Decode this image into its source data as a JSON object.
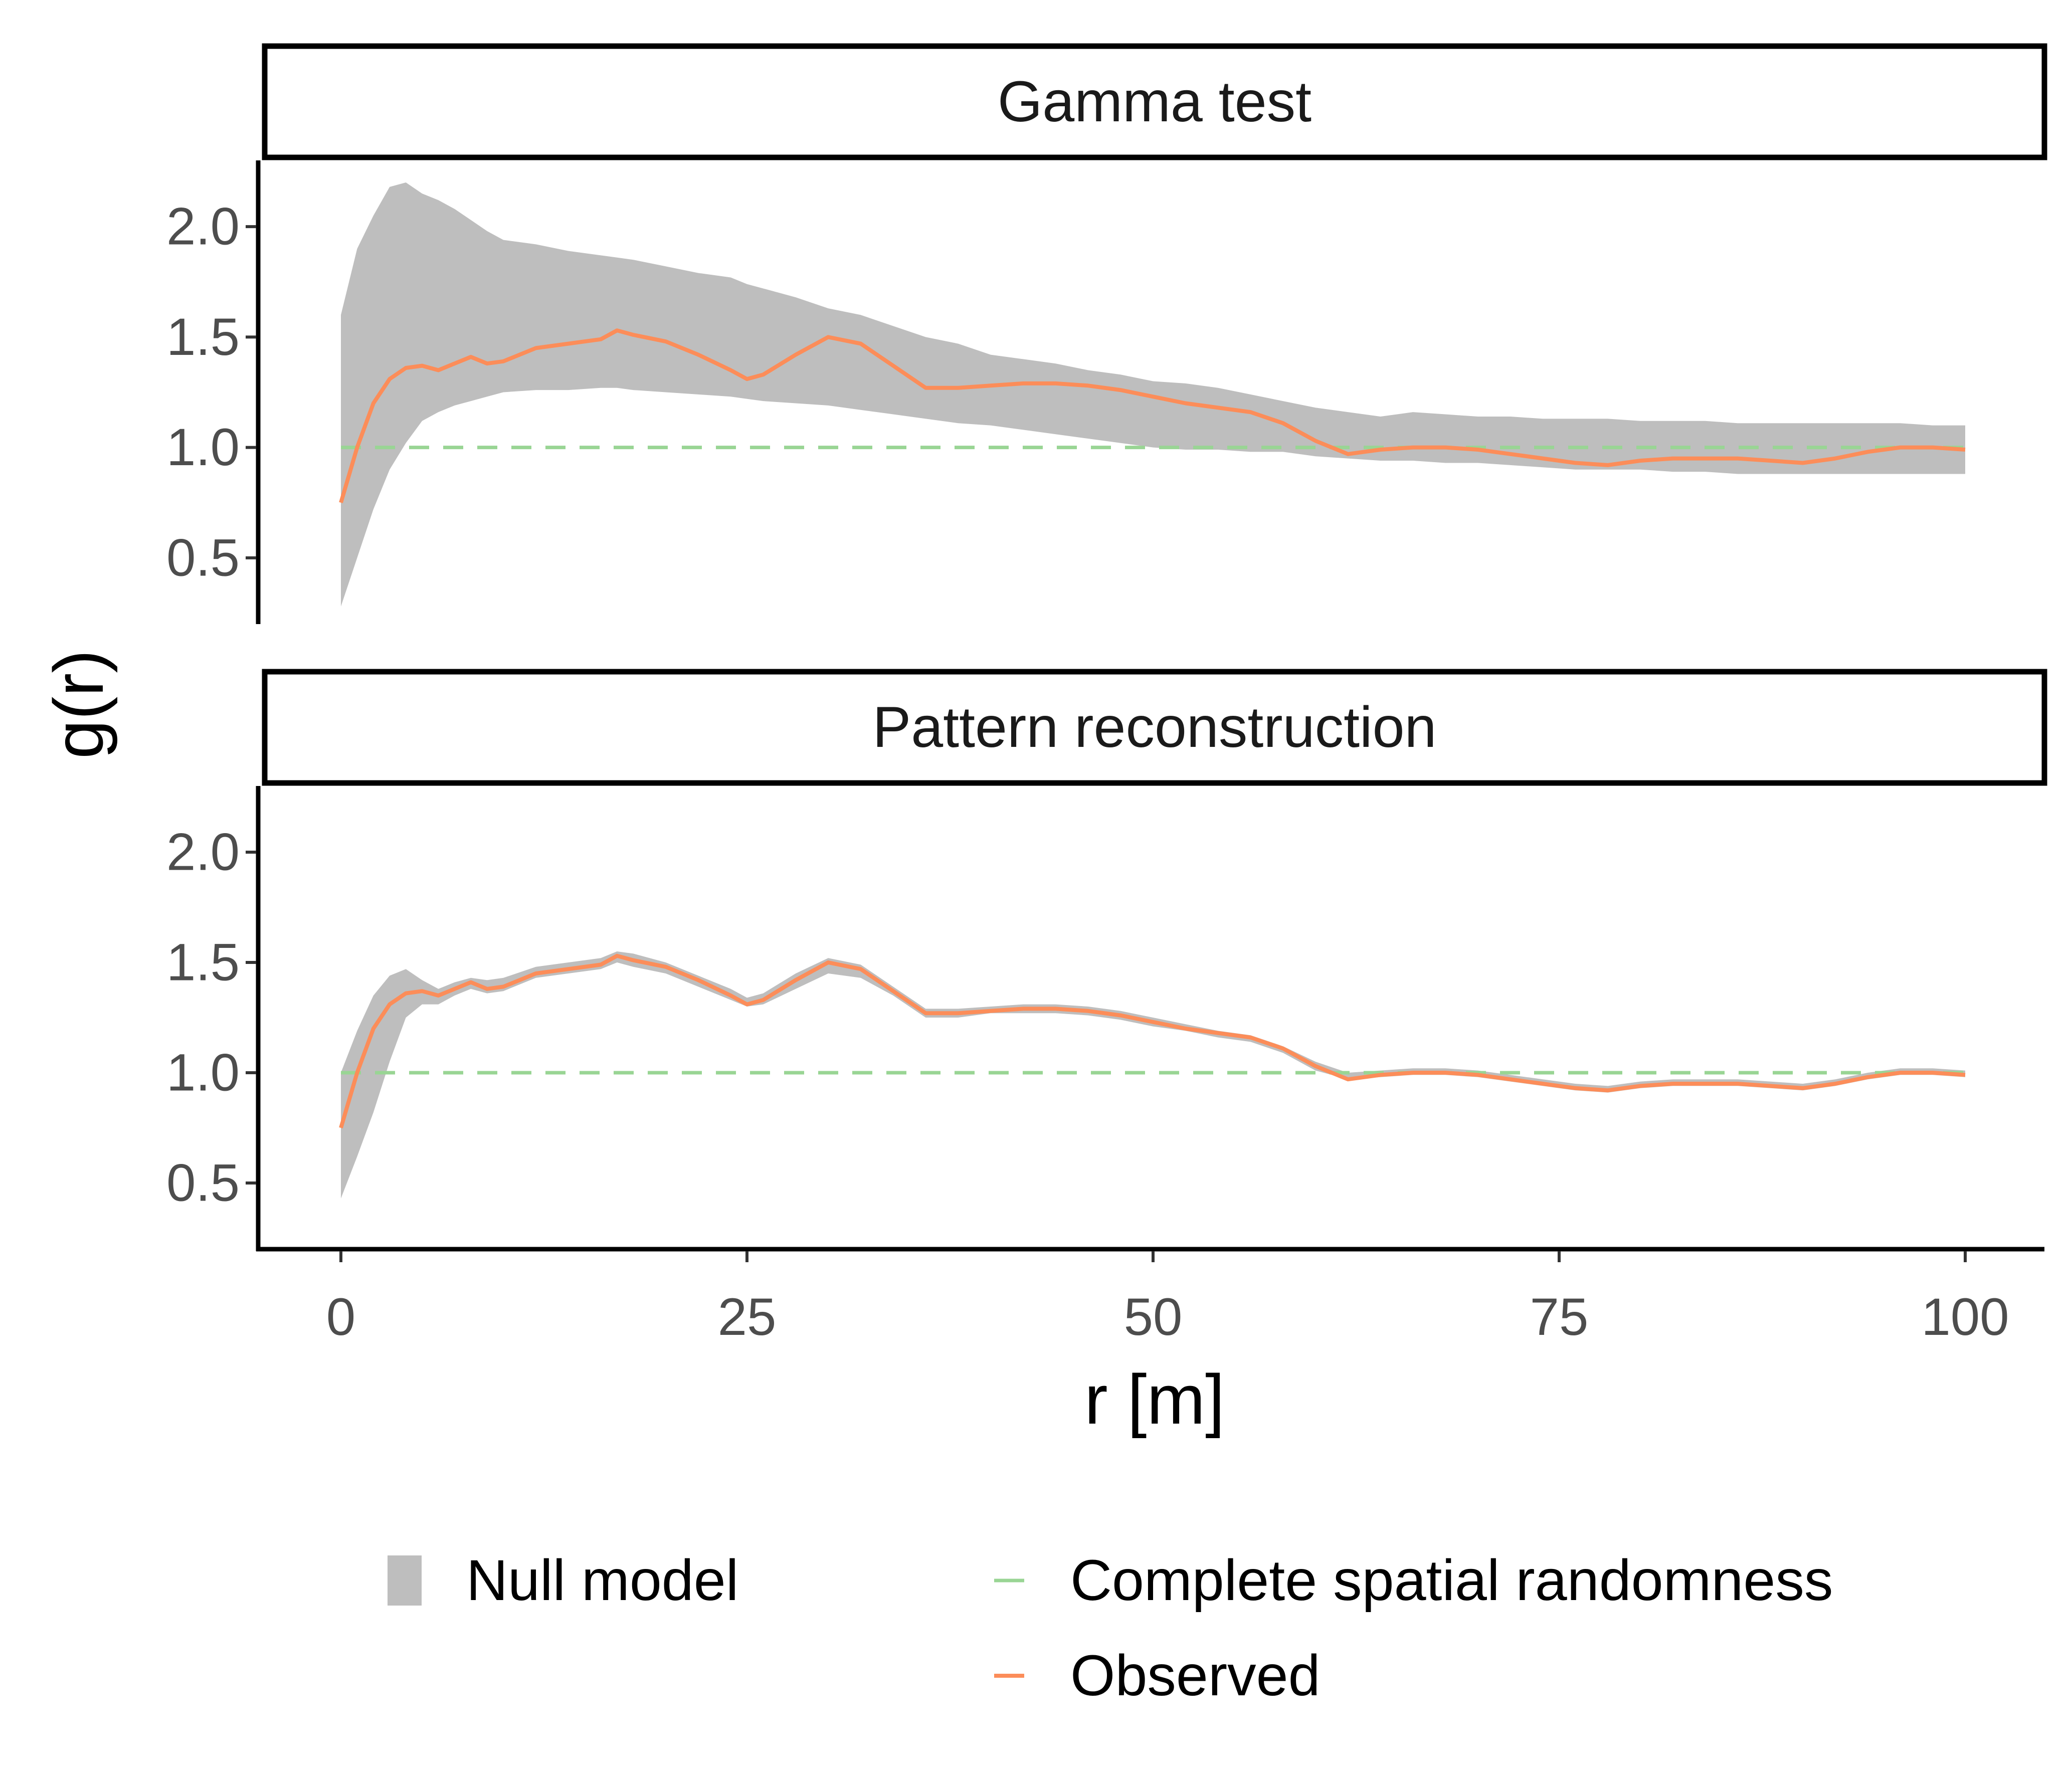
{
  "chart_data": {
    "type": "line",
    "facets": [
      "Gamma test",
      "Pattern reconstruction"
    ],
    "xlabel": "r [m]",
    "ylabel": "g(r)",
    "xlim": [
      0,
      100
    ],
    "ylim": [
      0.2,
      2.3
    ],
    "x_ticks": [
      0,
      25,
      50,
      75,
      100
    ],
    "y_ticks": [
      0.5,
      1.0,
      1.5,
      2.0
    ],
    "x_tick_labels": [
      "0",
      "25",
      "50",
      "75",
      "100"
    ],
    "y_tick_labels": [
      "0.5",
      "1.0",
      "1.5",
      "2.0"
    ],
    "grid": false,
    "legend_position": "bottom",
    "legend": {
      "null_model": "Null model",
      "csr": "Complete spatial randomness",
      "observed": "Observed"
    },
    "colors": {
      "null_model": "#bebebe",
      "csr": "#99d594",
      "observed": "#fc8d59"
    },
    "csr_value": 1.0,
    "x": [
      0,
      1,
      2,
      3,
      4,
      5,
      6,
      7,
      8,
      9,
      10,
      12,
      14,
      16,
      17,
      18,
      20,
      22,
      24,
      25,
      26,
      28,
      30,
      32,
      34,
      36,
      38,
      40,
      42,
      44,
      46,
      48,
      50,
      52,
      54,
      56,
      58,
      60,
      62,
      64,
      66,
      68,
      70,
      72,
      74,
      76,
      78,
      80,
      82,
      84,
      86,
      88,
      90,
      92,
      94,
      96,
      98,
      100
    ],
    "observed": [
      0.75,
      1.0,
      1.2,
      1.31,
      1.36,
      1.37,
      1.35,
      1.38,
      1.41,
      1.38,
      1.39,
      1.45,
      1.47,
      1.49,
      1.53,
      1.51,
      1.48,
      1.42,
      1.35,
      1.31,
      1.33,
      1.42,
      1.5,
      1.47,
      1.37,
      1.27,
      1.27,
      1.28,
      1.29,
      1.29,
      1.28,
      1.26,
      1.23,
      1.2,
      1.18,
      1.16,
      1.11,
      1.03,
      0.97,
      0.99,
      1.0,
      1.0,
      0.99,
      0.97,
      0.95,
      0.93,
      0.92,
      0.94,
      0.95,
      0.95,
      0.95,
      0.94,
      0.93,
      0.95,
      0.98,
      1.0,
      1.0,
      0.99
    ],
    "series": [
      {
        "facet": "Gamma test",
        "lower": [
          0.28,
          0.5,
          0.72,
          0.9,
          1.02,
          1.12,
          1.16,
          1.19,
          1.21,
          1.23,
          1.25,
          1.26,
          1.26,
          1.27,
          1.27,
          1.26,
          1.25,
          1.24,
          1.23,
          1.22,
          1.21,
          1.2,
          1.19,
          1.17,
          1.15,
          1.13,
          1.11,
          1.1,
          1.08,
          1.06,
          1.04,
          1.02,
          1.0,
          0.99,
          0.99,
          0.98,
          0.98,
          0.96,
          0.95,
          0.94,
          0.94,
          0.93,
          0.93,
          0.92,
          0.91,
          0.9,
          0.9,
          0.9,
          0.89,
          0.89,
          0.88,
          0.88,
          0.88,
          0.88,
          0.88,
          0.88,
          0.88,
          0.88
        ],
        "upper": [
          1.6,
          1.9,
          2.05,
          2.18,
          2.2,
          2.15,
          2.12,
          2.08,
          2.03,
          1.98,
          1.94,
          1.92,
          1.89,
          1.87,
          1.86,
          1.85,
          1.82,
          1.79,
          1.77,
          1.74,
          1.72,
          1.68,
          1.63,
          1.6,
          1.55,
          1.5,
          1.47,
          1.42,
          1.4,
          1.38,
          1.35,
          1.33,
          1.3,
          1.29,
          1.27,
          1.24,
          1.21,
          1.18,
          1.16,
          1.14,
          1.16,
          1.15,
          1.14,
          1.14,
          1.13,
          1.13,
          1.13,
          1.12,
          1.12,
          1.12,
          1.11,
          1.11,
          1.11,
          1.11,
          1.11,
          1.11,
          1.1,
          1.1
        ]
      },
      {
        "facet": "Pattern reconstruction",
        "lower": [
          0.43,
          0.62,
          0.82,
          1.05,
          1.25,
          1.31,
          1.31,
          1.35,
          1.38,
          1.36,
          1.37,
          1.43,
          1.45,
          1.47,
          1.5,
          1.48,
          1.45,
          1.39,
          1.33,
          1.3,
          1.31,
          1.38,
          1.45,
          1.43,
          1.35,
          1.25,
          1.25,
          1.27,
          1.27,
          1.27,
          1.26,
          1.24,
          1.21,
          1.19,
          1.16,
          1.14,
          1.09,
          1.01,
          0.97,
          0.98,
          0.99,
          0.99,
          0.98,
          0.96,
          0.94,
          0.92,
          0.91,
          0.93,
          0.94,
          0.94,
          0.94,
          0.93,
          0.92,
          0.94,
          0.97,
          0.99,
          0.99,
          0.98
        ],
        "upper": [
          1.0,
          1.19,
          1.35,
          1.44,
          1.47,
          1.42,
          1.38,
          1.41,
          1.43,
          1.42,
          1.43,
          1.48,
          1.5,
          1.52,
          1.55,
          1.54,
          1.5,
          1.44,
          1.38,
          1.34,
          1.36,
          1.45,
          1.52,
          1.49,
          1.39,
          1.29,
          1.29,
          1.3,
          1.31,
          1.31,
          1.3,
          1.28,
          1.25,
          1.22,
          1.19,
          1.17,
          1.12,
          1.05,
          1.0,
          1.01,
          1.02,
          1.02,
          1.01,
          0.99,
          0.97,
          0.95,
          0.94,
          0.96,
          0.97,
          0.97,
          0.97,
          0.96,
          0.95,
          0.97,
          1.0,
          1.02,
          1.02,
          1.01
        ]
      }
    ]
  }
}
